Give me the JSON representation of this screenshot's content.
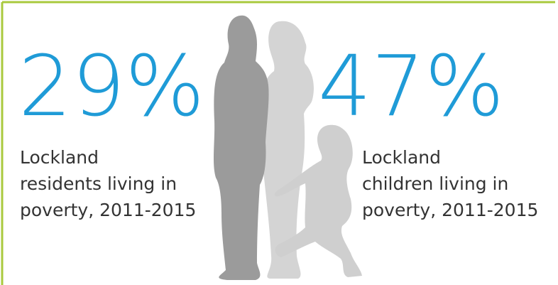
{
  "stats": [
    {
      "value": "29%",
      "label_lines": [
        "Lockland",
        "residents living in",
        "poverty, 2011-2015"
      ]
    },
    {
      "value": "47%",
      "label_lines": [
        "Lockland",
        "children living in",
        "poverty, 2011-2015"
      ]
    }
  ]
}
